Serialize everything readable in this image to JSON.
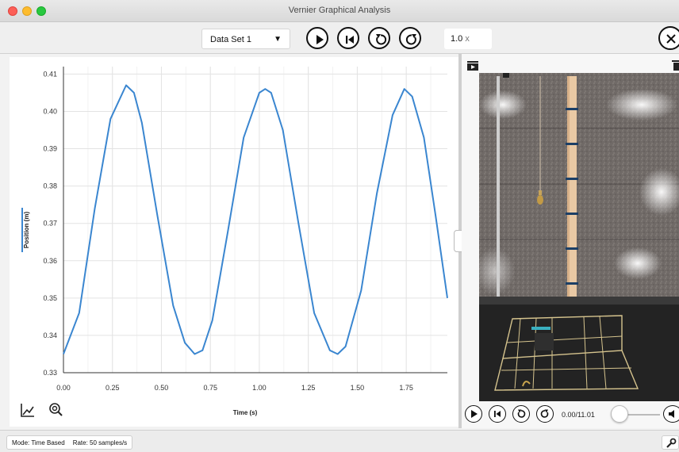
{
  "window": {
    "title": "Vernier Graphical Analysis"
  },
  "toolbar": {
    "dataset_label": "Data Set 1",
    "playback_rate_value": "1.0",
    "playback_rate_unit": "x",
    "icons": [
      "play-icon",
      "skip-to-start-icon",
      "step-back-icon",
      "step-forward-icon",
      "close-icon"
    ]
  },
  "chart_data": {
    "type": "line",
    "xlabel": "Time (s)",
    "ylabel": "Position (m)",
    "xlim": [
      0,
      1.96
    ],
    "ylim": [
      0.33,
      0.412
    ],
    "x_ticks": [
      "0.00",
      "0.25",
      "0.50",
      "0.75",
      "1.00",
      "1.25",
      "1.50",
      "1.75"
    ],
    "y_ticks": [
      "0.33",
      "0.34",
      "0.35",
      "0.36",
      "0.37",
      "0.38",
      "0.39",
      "0.40",
      "0.41"
    ],
    "grid": true,
    "series": [
      {
        "color": "#3a86d0",
        "x": [
          0.0,
          0.08,
          0.16,
          0.24,
          0.32,
          0.36,
          0.4,
          0.48,
          0.56,
          0.62,
          0.67,
          0.71,
          0.76,
          0.84,
          0.92,
          1.0,
          1.03,
          1.06,
          1.12,
          1.2,
          1.28,
          1.36,
          1.4,
          1.44,
          1.52,
          1.6,
          1.68,
          1.74,
          1.78,
          1.84,
          1.9,
          1.96
        ],
        "y": [
          0.335,
          0.346,
          0.374,
          0.398,
          0.407,
          0.405,
          0.397,
          0.372,
          0.348,
          0.338,
          0.335,
          0.336,
          0.344,
          0.368,
          0.393,
          0.405,
          0.406,
          0.405,
          0.395,
          0.37,
          0.346,
          0.336,
          0.335,
          0.337,
          0.352,
          0.378,
          0.399,
          0.406,
          0.404,
          0.393,
          0.372,
          0.35
        ]
      }
    ]
  },
  "graph_tools": {
    "icons": [
      "graph-options-icon",
      "zoom-icon"
    ]
  },
  "video": {
    "time_readout": "0.00/11.01",
    "progress": 0.0,
    "icons": [
      "video-camera-icon",
      "trash-icon",
      "play-icon",
      "skip-to-start-icon",
      "step-back-icon",
      "step-forward-icon",
      "volume-icon"
    ]
  },
  "status": {
    "mode": "Mode: Time Based",
    "rate": "Rate: 50 samples/s",
    "icons": [
      "wrench-icon"
    ]
  }
}
